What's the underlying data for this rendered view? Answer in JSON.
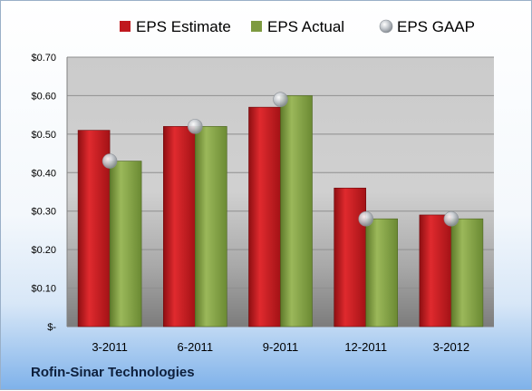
{
  "chart_data": {
    "type": "bar",
    "categories": [
      "3-2011",
      "6-2011",
      "9-2011",
      "12-2011",
      "3-2012"
    ],
    "series": [
      {
        "name": "EPS Estimate",
        "values": [
          0.51,
          0.52,
          0.57,
          0.36,
          0.29
        ],
        "color": "#c0181e"
      },
      {
        "name": "EPS Actual",
        "values": [
          0.43,
          0.52,
          0.6,
          0.28,
          0.28
        ],
        "color": "#7d9a40"
      },
      {
        "name": "EPS GAAP",
        "values": [
          0.43,
          0.52,
          0.59,
          0.28,
          0.28
        ],
        "color": "#c4c8cc",
        "style": "marker"
      }
    ],
    "ylim": [
      0,
      0.7
    ],
    "yticks": [
      0,
      0.1,
      0.2,
      0.3,
      0.4,
      0.5,
      0.6,
      0.7
    ],
    "ytick_labels": [
      "$-",
      "$0.10",
      "$0.20",
      "$0.30",
      "$0.40",
      "$0.50",
      "$0.60",
      "$0.70"
    ],
    "grid": true,
    "legend_position": "top",
    "footer": "Rofin-Sinar Technologies"
  }
}
